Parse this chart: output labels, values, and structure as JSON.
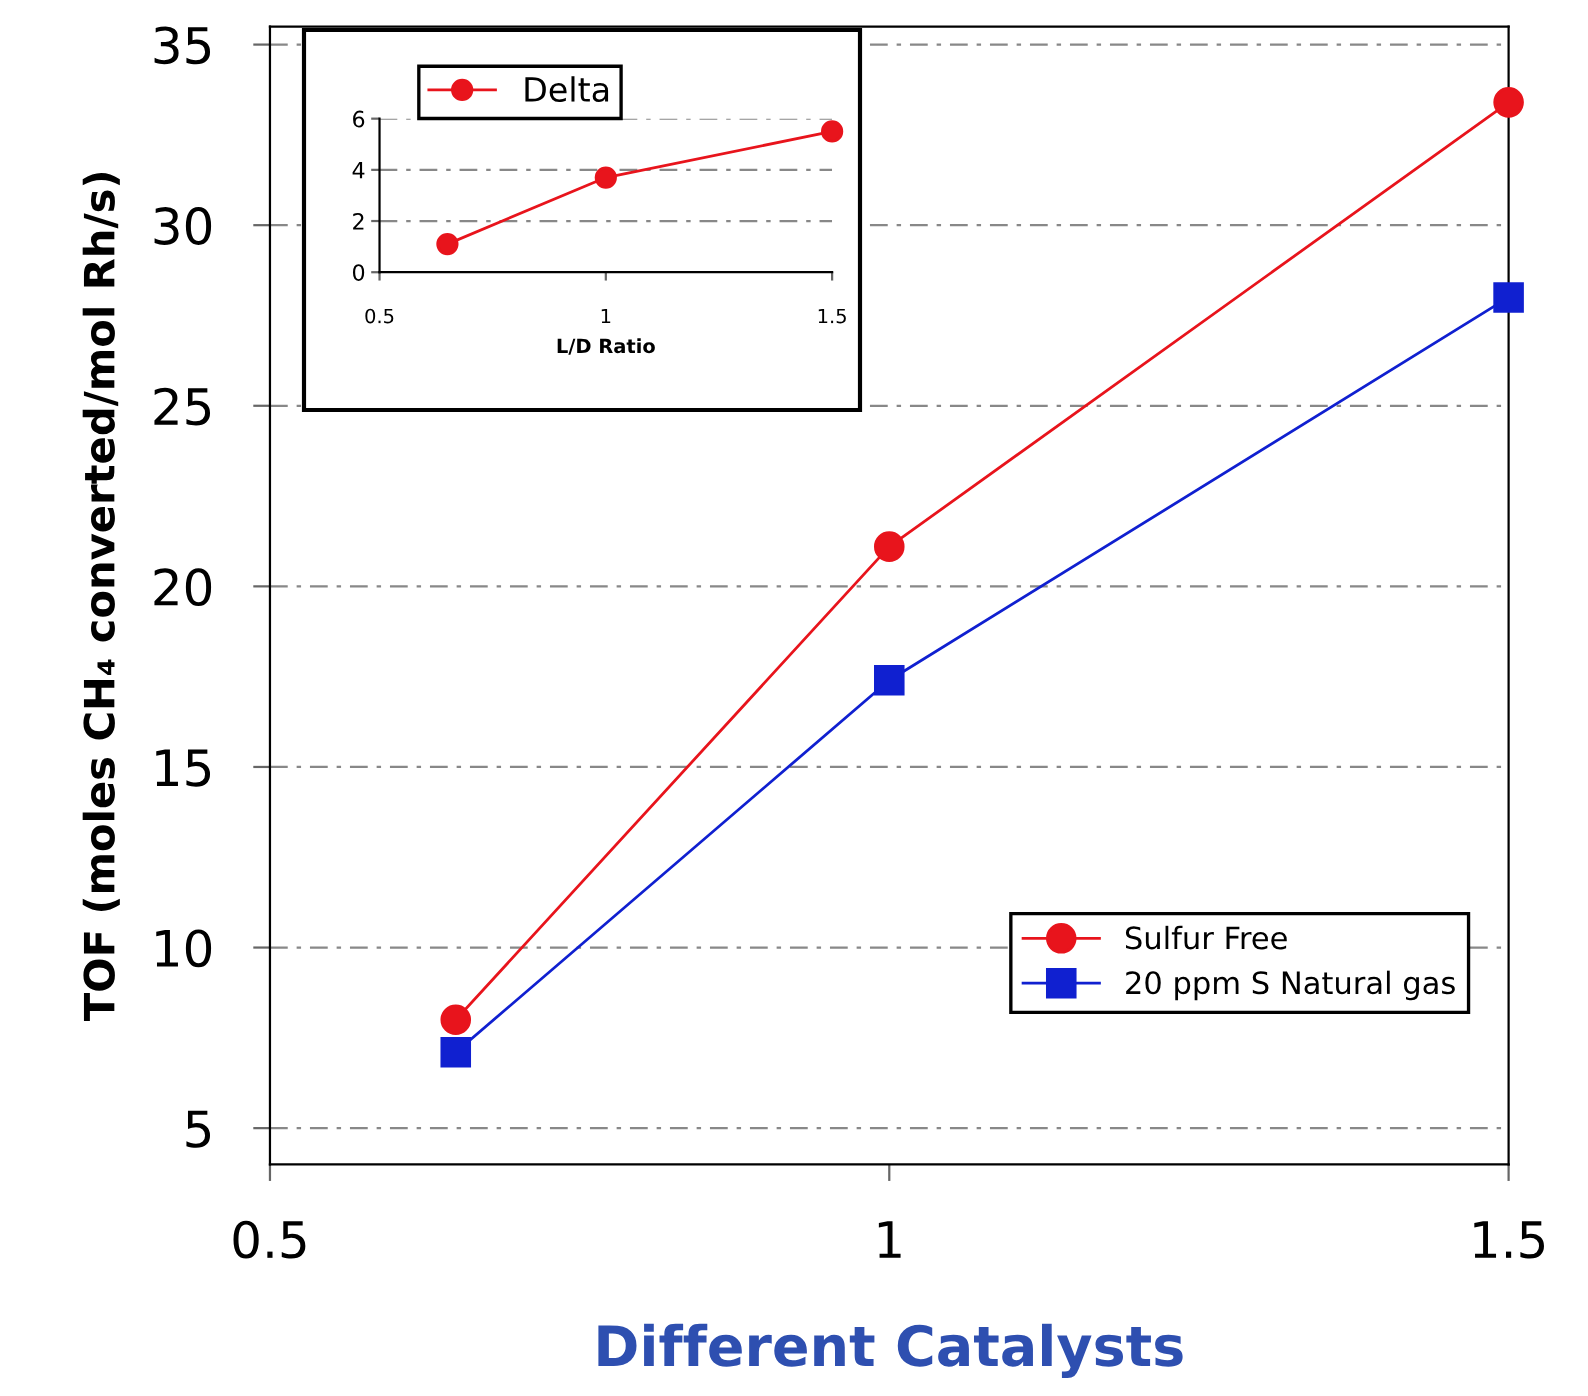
{
  "chart_data": [
    {
      "type": "line",
      "xlabel": "Different Catalysts",
      "ylabel": "TOF (moles CH₄ converted/mol Rh/s)",
      "x": [
        0.65,
        1,
        1.5
      ],
      "series": [
        {
          "name": "Sulfur Free",
          "color": "#e8141c",
          "values": [
            8.0,
            21.1,
            33.4
          ],
          "marker": "circle"
        },
        {
          "name": "20 ppm S Natural gas",
          "color": "#1020d0",
          "values": [
            7.1,
            17.4,
            28.0
          ],
          "marker": "square"
        }
      ],
      "xlim": [
        0.5,
        1.5
      ],
      "xticks": [
        0.5,
        1,
        1.5
      ],
      "ylim": [
        4,
        35.5
      ],
      "yticks": [
        5,
        10,
        15,
        20,
        25,
        30,
        35
      ],
      "grid": "y",
      "legend": "bottom right",
      "line_style": "solid"
    },
    {
      "type": "line",
      "xlabel": "L/D Ratio",
      "x": [
        0.65,
        1,
        1.5
      ],
      "series": [
        {
          "name": "Delta",
          "color": "#e8141c",
          "values": [
            1.1,
            3.7,
            5.5
          ],
          "marker": "circle"
        }
      ],
      "xlim": [
        0.5,
        1.5
      ],
      "xticks": [
        0.5,
        1,
        1.5
      ],
      "ylim": [
        0,
        6
      ],
      "yticks": [
        0,
        2,
        4,
        6
      ],
      "grid": "y",
      "legend": "top left",
      "line_style": "solid"
    }
  ]
}
